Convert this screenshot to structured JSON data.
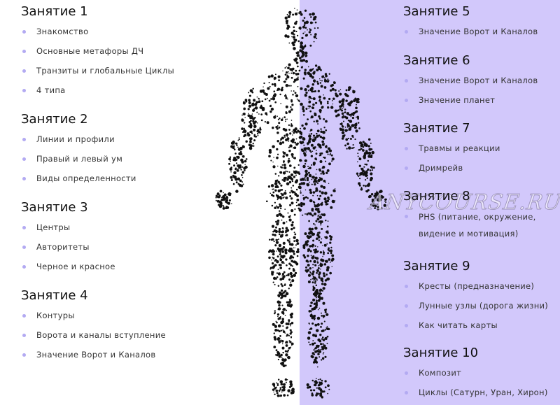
{
  "colors": {
    "left_bg": "#ffffff",
    "right_bg": "#d2c8fb",
    "highlight": "#f3ea35",
    "bullet": "#b3aaf2",
    "dots": "#111111"
  },
  "watermark": "ANYCOURSE.RU",
  "lessons": [
    {
      "title": "Занятие 1",
      "items": [
        "Знакомство",
        "Основные метафоры ДЧ",
        "Транзиты и глобальные Циклы",
        "4 типа"
      ]
    },
    {
      "title": "Занятие 2",
      "items": [
        "Линии и профили",
        "Правый и левый ум",
        "Виды определенности"
      ]
    },
    {
      "title": "Занятие 3",
      "items": [
        "Центры",
        "Авторитеты",
        "Черное и красное"
      ]
    },
    {
      "title": "Занятие 4",
      "items": [
        "Контуры",
        "Ворота и каналы вступление",
        "Значение Ворот и Каналов"
      ]
    },
    {
      "title": "Занятие 5",
      "items": [
        "Значение Ворот и Каналов"
      ]
    },
    {
      "title": "Занятие 6",
      "items": [
        "Значение Ворот и Каналов",
        "Значение планет"
      ]
    },
    {
      "title": "Занятие 7",
      "items": [
        "Травмы и реакции",
        "Дримрейв"
      ]
    },
    {
      "title": "Занятие 8",
      "items": [
        "PHS (питание, окружение,\nвидение и мотивация)"
      ]
    },
    {
      "title": "Занятие 9",
      "items": [
        "Кресты (предназначение)",
        "Лунные узлы (дорога жизни)",
        "Как читать карты"
      ]
    },
    {
      "title": "Занятие 10",
      "items": [
        "Композит",
        "Циклы (Сатурн, Уран, Хирон)"
      ]
    }
  ]
}
